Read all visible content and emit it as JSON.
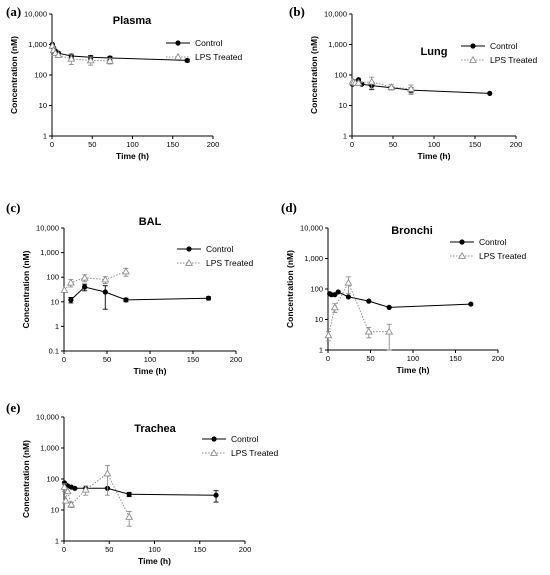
{
  "chart_data": [
    {
      "type": "line",
      "panel_label": "(a)",
      "title": "Plasma",
      "xlabel": "Time (h)",
      "ylabel": "Concentration (nM)",
      "xlim": [
        0,
        200
      ],
      "ylim": [
        1,
        10000
      ],
      "yscale": "log",
      "xticks": [
        "0",
        "50",
        "100",
        "150",
        "200"
      ],
      "yticks": [
        "1",
        "10",
        "100",
        "1,000",
        "10,000"
      ],
      "legend": "top-right",
      "series": [
        {
          "name": "Control",
          "style": "solid",
          "marker": "circle",
          "color": "#000000",
          "x": [
            0.5,
            2,
            4,
            8,
            24,
            48,
            72,
            168
          ],
          "y": [
            1000,
            780,
            620,
            520,
            420,
            380,
            360,
            300
          ],
          "err": [
            0,
            0,
            0,
            0,
            60,
            50,
            50,
            30
          ]
        },
        {
          "name": "LPS Treated",
          "style": "dotted",
          "marker": "triangle",
          "color": "#8c8c8c",
          "x": [
            0.5,
            2,
            4,
            8,
            24,
            48,
            72
          ],
          "y": [
            900,
            650,
            520,
            450,
            340,
            300,
            290
          ],
          "err": [
            0,
            0,
            0,
            0,
            120,
            90,
            60
          ]
        }
      ]
    },
    {
      "type": "line",
      "panel_label": "(b)",
      "title": "Lung",
      "xlabel": "Time (h)",
      "ylabel": "Concentration (nM)",
      "xlim": [
        0,
        200
      ],
      "ylim": [
        1,
        10000
      ],
      "yscale": "log",
      "xticks": [
        "0",
        "50",
        "100",
        "150",
        "200"
      ],
      "yticks": [
        "1",
        "10",
        "100",
        "1,000",
        "10,000"
      ],
      "legend": "top-right",
      "series": [
        {
          "name": "Control",
          "style": "solid",
          "marker": "circle",
          "color": "#000000",
          "x": [
            0.5,
            2,
            4,
            8,
            12,
            24,
            48,
            72,
            168
          ],
          "y": [
            50,
            55,
            60,
            70,
            50,
            45,
            38,
            32,
            25
          ],
          "err": [
            0,
            0,
            0,
            0,
            0,
            12,
            0,
            6,
            0
          ]
        },
        {
          "name": "LPS Treated",
          "style": "dotted",
          "marker": "triangle",
          "color": "#8c8c8c",
          "x": [
            0.5,
            2,
            4,
            8,
            24,
            48,
            72
          ],
          "y": [
            60,
            58,
            55,
            55,
            60,
            40,
            35
          ],
          "err": [
            0,
            0,
            0,
            0,
            25,
            8,
            12
          ]
        }
      ]
    },
    {
      "type": "line",
      "panel_label": "(c)",
      "title": "BAL",
      "xlabel": "Time (h)",
      "ylabel": "Concentration (nM)",
      "xlim": [
        0,
        200
      ],
      "ylim": [
        0.1,
        10000
      ],
      "yscale": "log",
      "xticks": [
        "0",
        "50",
        "100",
        "150",
        "200"
      ],
      "yticks": [
        "0.1",
        "1",
        "10",
        "100",
        "1,000",
        "10,000"
      ],
      "legend": "top-right",
      "series": [
        {
          "name": "Control",
          "style": "solid",
          "marker": "circle",
          "color": "#000000",
          "x": [
            8,
            24,
            48,
            72,
            168
          ],
          "y": [
            12,
            40,
            25,
            12,
            14
          ],
          "err": [
            3,
            12,
            20,
            2,
            2
          ]
        },
        {
          "name": "LPS Treated",
          "style": "dotted",
          "marker": "triangle",
          "color": "#8c8c8c",
          "x": [
            0.5,
            8,
            24,
            48,
            72
          ],
          "y": [
            30,
            60,
            95,
            80,
            170
          ],
          "err": [
            0,
            20,
            30,
            25,
            60
          ]
        }
      ]
    },
    {
      "type": "line",
      "panel_label": "(d)",
      "title": "Bronchi",
      "xlabel": "Time (h)",
      "ylabel": "Concentration (nM)",
      "xlim": [
        0,
        200
      ],
      "ylim": [
        1,
        10000
      ],
      "yscale": "log",
      "xticks": [
        "0",
        "50",
        "100",
        "150",
        "200"
      ],
      "yticks": [
        "1",
        "10",
        "100",
        "1,000",
        "10,000"
      ],
      "legend": "top-right",
      "series": [
        {
          "name": "Control",
          "style": "solid",
          "marker": "circle",
          "color": "#000000",
          "x": [
            2,
            4,
            8,
            12,
            24,
            48,
            72,
            168
          ],
          "y": [
            70,
            65,
            65,
            80,
            55,
            40,
            25,
            32
          ],
          "err": [
            0,
            0,
            0,
            0,
            0,
            0,
            0,
            0
          ]
        },
        {
          "name": "LPS Treated",
          "style": "dotted",
          "marker": "triangle",
          "color": "#8c8c8c",
          "x": [
            0.5,
            8,
            24,
            48,
            72
          ],
          "y": [
            3,
            25,
            160,
            4,
            4
          ],
          "err": [
            1,
            8,
            90,
            1.5,
            3
          ]
        }
      ]
    },
    {
      "type": "line",
      "panel_label": "(e)",
      "title": "Trachea",
      "xlabel": "Time (h)",
      "ylabel": "Concentration (nM)",
      "xlim": [
        0,
        200
      ],
      "ylim": [
        1,
        10000
      ],
      "yscale": "log",
      "xticks": [
        "0",
        "50",
        "100",
        "150",
        "200"
      ],
      "yticks": [
        "1",
        "10",
        "100",
        "1,000",
        "10,000"
      ],
      "legend": "top-right",
      "series": [
        {
          "name": "Control",
          "style": "solid",
          "marker": "circle",
          "color": "#000000",
          "x": [
            0.5,
            2,
            4,
            8,
            12,
            24,
            48,
            72,
            168
          ],
          "y": [
            75,
            65,
            60,
            55,
            50,
            50,
            50,
            32,
            30
          ],
          "err": [
            0,
            0,
            0,
            0,
            0,
            0,
            0,
            5,
            12
          ]
        },
        {
          "name": "LPS Treated",
          "style": "dotted",
          "marker": "triangle",
          "color": "#8c8c8c",
          "x": [
            0.5,
            2,
            4,
            8,
            24,
            48,
            72
          ],
          "y": [
            55,
            20,
            40,
            15,
            45,
            150,
            6
          ],
          "err": [
            15,
            0,
            0,
            3,
            15,
            120,
            3
          ]
        }
      ]
    }
  ]
}
